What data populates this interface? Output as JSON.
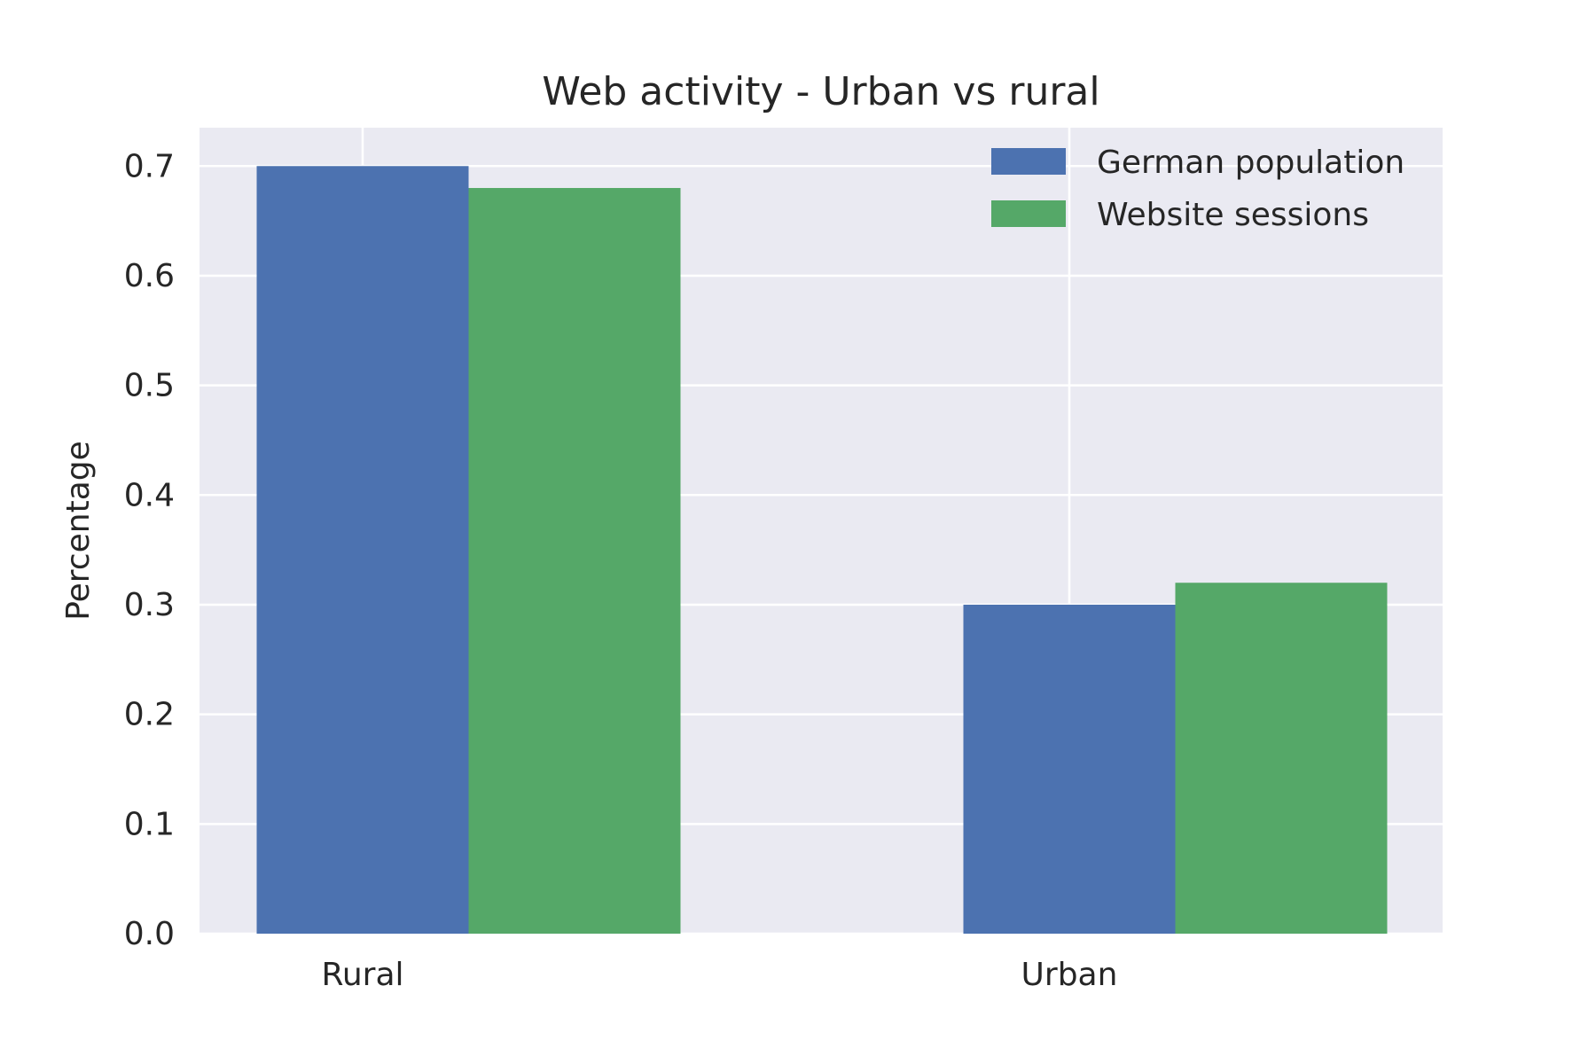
{
  "chart_data": {
    "type": "bar",
    "title": "Web activity - Urban vs rural",
    "xlabel": "",
    "ylabel": "Percentage",
    "categories": [
      "Rural",
      "Urban"
    ],
    "series": [
      {
        "name": "German population",
        "values": [
          0.7,
          0.3
        ],
        "color": "#4c72b0"
      },
      {
        "name": "Website sessions",
        "values": [
          0.68,
          0.32
        ],
        "color": "#55a868"
      }
    ],
    "ylim": [
      0,
      0.735
    ],
    "yticks": [
      "0.0",
      "0.1",
      "0.2",
      "0.3",
      "0.4",
      "0.5",
      "0.6",
      "0.7"
    ],
    "grid": true,
    "legend_position": "top-right",
    "background_color": "#eaeaf2",
    "grid_color": "#ffffff"
  }
}
